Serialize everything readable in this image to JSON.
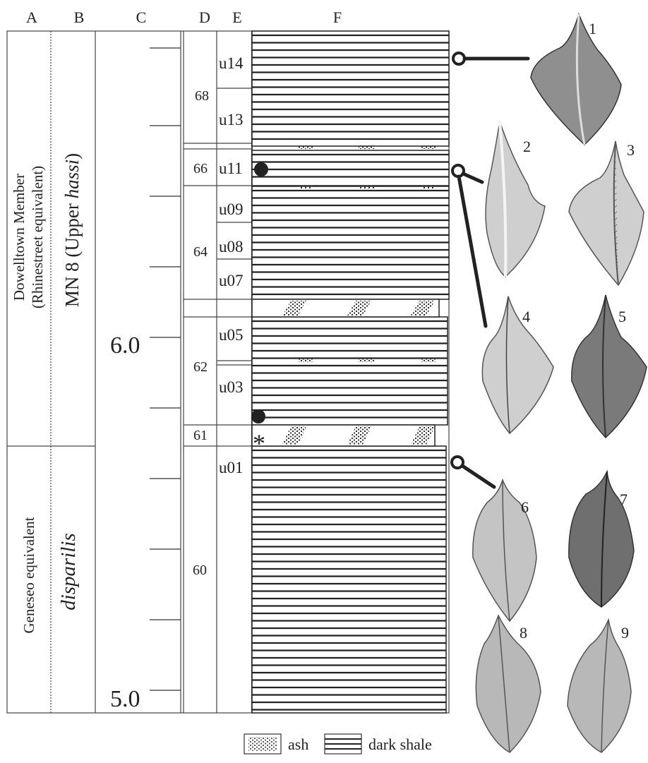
{
  "columns": {
    "a": "A",
    "b": "B",
    "c": "C",
    "d": "D",
    "e": "E",
    "f": "F"
  },
  "members": {
    "upper": {
      "line1": "Dowelltown Member",
      "line2": "(Rhinestreet equivalent)"
    },
    "lower": "Geneseo equivalent"
  },
  "zones": {
    "upper_prefix": "MN 8 (Upper ",
    "upper_species": "hassi",
    "upper_suffix": ")",
    "lower": "disparilis"
  },
  "scale": {
    "upper": "6.0",
    "lower": "5.0"
  },
  "beds": [
    "68",
    "66",
    "64",
    "62",
    "61",
    "60"
  ],
  "units": [
    "u14",
    "u13",
    "u11",
    "u09",
    "u08",
    "u07",
    "u05",
    "u03",
    "u01"
  ],
  "specimens": [
    "1",
    "2",
    "3",
    "4",
    "5",
    "6",
    "7",
    "8",
    "9"
  ],
  "legend": {
    "ash": "ash",
    "shale": "dark shale"
  },
  "marker_asterisk": "*",
  "colors": {
    "ink": "#222222",
    "specimen_light": "#cfcfcf",
    "specimen_dark": "#6f6f6f"
  }
}
